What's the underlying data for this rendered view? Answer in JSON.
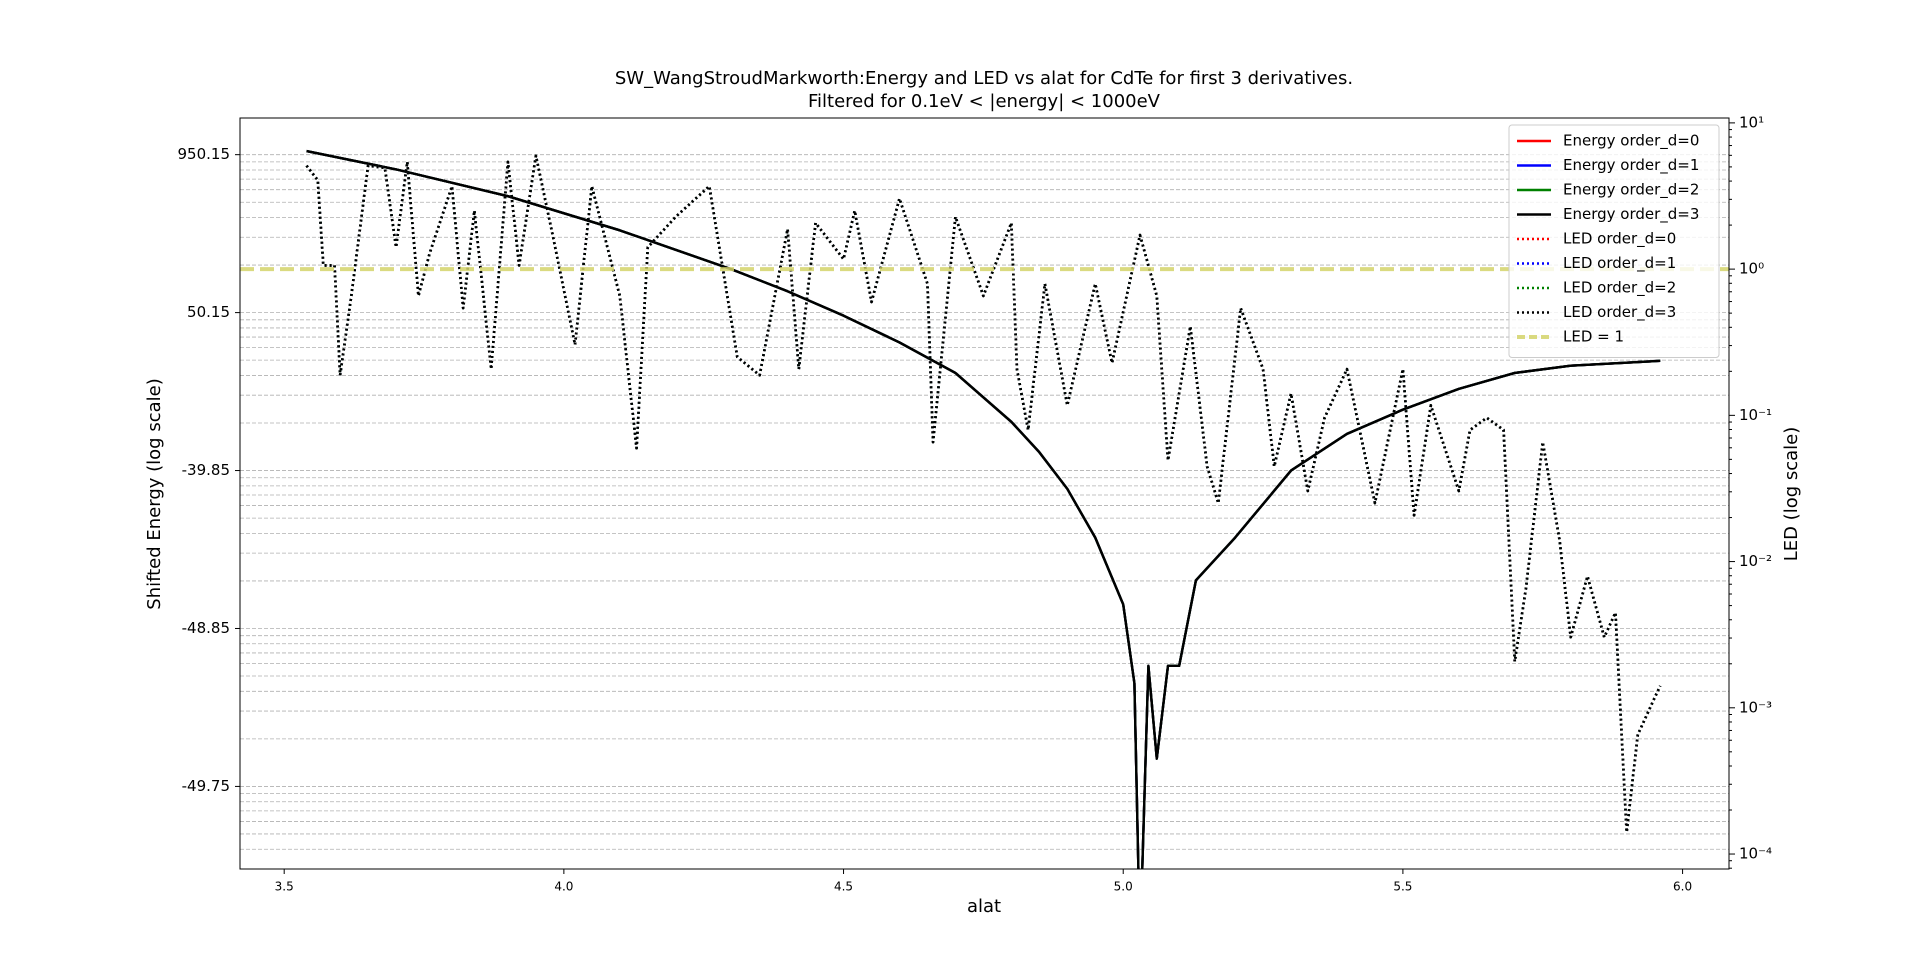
{
  "chart_data": {
    "type": "line",
    "title": "SW_WangStroudMarkworth:Energy and LED vs alat for CdTe for first 3 derivatives.",
    "subtitle": "Filtered for 0.1eV < |energy| < 1000eV",
    "x_label": "alat",
    "y_label": "Shifted Energy (log scale)",
    "y2_label": "LED (log scale)",
    "xlim": [
      3.421,
      6.083
    ],
    "xticks": [
      {
        "value": 3.5,
        "label": "3.5"
      },
      {
        "value": 4,
        "label": "4.0"
      },
      {
        "value": 4.5,
        "label": "4.5"
      },
      {
        "value": 5,
        "label": "5.0"
      },
      {
        "value": 5.5,
        "label": "5.5"
      },
      {
        "value": 6,
        "label": "6.0"
      }
    ],
    "yscale": "log",
    "ylim": [
      -49.82,
      1657
    ],
    "yticks": [
      950.15,
      50.15,
      -39.85,
      -48.85,
      -49.75
    ],
    "y2scale": "log",
    "y2lim": [
      7.9e-05,
      10.8
    ],
    "y2ticks": [
      {
        "value": 10,
        "label": "10¹"
      },
      {
        "value": 1,
        "label": "10⁰"
      },
      {
        "value": 0.1,
        "label": "10⁻¹"
      },
      {
        "value": 0.01,
        "label": "10⁻²"
      },
      {
        "value": 0.001,
        "label": "10⁻³"
      },
      {
        "value": 0.0001,
        "label": "10⁻⁴"
      }
    ],
    "grid": true,
    "legend": "upper right",
    "series": [
      {
        "name": "Energy order_d=0",
        "color": "#ff0000",
        "style": "solid",
        "axis": "y",
        "x": [
          3.54,
          3.7,
          3.9,
          4.1,
          4.3,
          4.4,
          4.5,
          4.6,
          4.7,
          4.8,
          4.85,
          4.9,
          4.95,
          5.0,
          5.02,
          5.03,
          5.045,
          5.06,
          5.08,
          5.1,
          5.13,
          5.2,
          5.3,
          5.4,
          5.5,
          5.6,
          5.7,
          5.8,
          5.96
        ],
        "values": [
          1004.7,
          757,
          496,
          282,
          138,
          86.6,
          45.8,
          14.9,
          -8.35,
          -29.5,
          -36.79,
          -42.19,
          -46.09,
          -48.43,
          -49.4,
          -49.84,
          -49.27,
          -49.7,
          -49.27,
          -49.27,
          -47.83,
          -46.09,
          -39.85,
          -32.79,
          -25.55,
          -16.95,
          -8.35,
          -3.75,
          -0.35
        ]
      },
      {
        "name": "Energy order_d=1",
        "color": "#0000ff",
        "style": "solid",
        "axis": "y",
        "x": [
          3.54,
          3.7,
          3.9,
          4.1,
          4.3,
          4.4,
          4.5,
          4.6,
          4.7,
          4.8,
          4.85,
          4.9,
          4.95,
          5.0,
          5.02,
          5.03,
          5.045,
          5.06,
          5.08,
          5.1,
          5.13,
          5.2,
          5.3,
          5.4,
          5.5,
          5.6,
          5.7,
          5.8,
          5.96
        ],
        "values": [
          1004.7,
          757,
          496,
          282,
          138,
          86.6,
          45.8,
          14.9,
          -8.35,
          -29.5,
          -36.79,
          -42.19,
          -46.09,
          -48.43,
          -49.4,
          -49.84,
          -49.27,
          -49.7,
          -49.27,
          -49.27,
          -47.83,
          -46.09,
          -39.85,
          -32.79,
          -25.55,
          -16.95,
          -8.35,
          -3.75,
          -0.35
        ]
      },
      {
        "name": "Energy order_d=2",
        "color": "#008000",
        "style": "solid",
        "axis": "y",
        "x": [
          3.54,
          3.7,
          3.9,
          4.1,
          4.3,
          4.4,
          4.5,
          4.6,
          4.7,
          4.8,
          4.85,
          4.9,
          4.95,
          5.0,
          5.02,
          5.03,
          5.045,
          5.06,
          5.08,
          5.1,
          5.13,
          5.2,
          5.3,
          5.4,
          5.5,
          5.6,
          5.7,
          5.8,
          5.96
        ],
        "values": [
          1004.7,
          757,
          496,
          282,
          138,
          86.6,
          45.8,
          14.9,
          -8.35,
          -29.5,
          -36.79,
          -42.19,
          -46.09,
          -48.43,
          -49.4,
          -49.84,
          -49.27,
          -49.7,
          -49.27,
          -49.27,
          -47.83,
          -46.09,
          -39.85,
          -32.79,
          -25.55,
          -16.95,
          -8.35,
          -3.75,
          -0.35
        ]
      },
      {
        "name": "Energy order_d=3",
        "color": "#000000",
        "style": "solid",
        "axis": "y",
        "x": [
          3.54,
          3.7,
          3.9,
          4.1,
          4.3,
          4.4,
          4.5,
          4.6,
          4.7,
          4.8,
          4.85,
          4.9,
          4.95,
          5.0,
          5.02,
          5.03,
          5.045,
          5.06,
          5.08,
          5.1,
          5.13,
          5.2,
          5.3,
          5.4,
          5.5,
          5.6,
          5.7,
          5.8,
          5.96
        ],
        "values": [
          1004.7,
          757,
          496,
          282,
          138,
          86.6,
          45.8,
          14.9,
          -8.35,
          -29.5,
          -36.79,
          -42.19,
          -46.09,
          -48.43,
          -49.4,
          -49.84,
          -49.27,
          -49.7,
          -49.27,
          -49.27,
          -47.83,
          -46.09,
          -39.85,
          -32.79,
          -25.55,
          -16.95,
          -8.35,
          -3.75,
          -0.35
        ]
      },
      {
        "name": "LED order_d=0",
        "color": "#ff0000",
        "style": "dotted",
        "axis": "y2",
        "x": [
          3.54,
          3.56,
          3.57,
          3.59,
          3.6,
          3.62,
          3.65,
          3.68,
          3.7,
          3.72,
          3.74,
          3.76,
          3.8,
          3.82,
          3.84,
          3.87,
          3.9,
          3.92,
          3.95,
          3.98,
          4.02,
          4.05,
          4.1,
          4.13,
          4.15,
          4.2,
          4.26,
          4.31,
          4.35,
          4.4,
          4.42,
          4.45,
          4.5,
          4.52,
          4.55,
          4.6,
          4.65,
          4.66,
          4.7,
          4.75,
          4.8,
          4.81,
          4.83,
          4.86,
          4.9,
          4.95,
          4.98,
          5.03,
          5.06,
          5.08,
          5.12,
          5.15,
          5.17,
          5.21,
          5.25,
          5.27,
          5.3,
          5.33,
          5.36,
          5.4,
          5.45,
          5.5,
          5.52,
          5.55,
          5.6,
          5.62,
          5.65,
          5.68,
          5.7,
          5.72,
          5.75,
          5.78,
          5.8,
          5.83,
          5.86,
          5.88,
          5.9,
          5.92,
          5.95,
          5.96
        ],
        "values": [
          5.1,
          4.06,
          1.06,
          1.06,
          0.188,
          0.656,
          5.1,
          4.92,
          1.41,
          5.41,
          0.656,
          1.28,
          3.69,
          0.541,
          2.51,
          0.207,
          5.41,
          1.06,
          5.96,
          1.71,
          0.304,
          3.69,
          0.656,
          0.0596,
          1.41,
          2.28,
          3.69,
          0.251,
          0.188,
          1.88,
          0.207,
          2.07,
          1.17,
          2.51,
          0.596,
          3.04,
          0.794,
          0.0656,
          2.28,
          0.656,
          2.07,
          0.207,
          0.0794,
          0.794,
          0.117,
          0.794,
          0.228,
          1.71,
          0.656,
          0.0492,
          0.406,
          0.0447,
          0.0251,
          0.541,
          0.207,
          0.0447,
          0.141,
          0.0304,
          0.0962,
          0.207,
          0.0251,
          0.207,
          0.0207,
          0.117,
          0.0304,
          0.0794,
          0.0962,
          0.0794,
          0.00207,
          0.00656,
          0.0656,
          0.0141,
          0.00304,
          0.00794,
          0.00304,
          0.00447,
          0.000141,
          0.000656,
          0.00117,
          0.00141
        ]
      },
      {
        "name": "LED order_d=1",
        "color": "#0000ff",
        "style": "dotted",
        "axis": "y2",
        "x": [
          3.54,
          3.56,
          3.57,
          3.59,
          3.6,
          3.62,
          3.65,
          3.68,
          3.7,
          3.72,
          3.74,
          3.76,
          3.8,
          3.82,
          3.84,
          3.87,
          3.9,
          3.92,
          3.95,
          3.98,
          4.02,
          4.05,
          4.1,
          4.13,
          4.15,
          4.2,
          4.26,
          4.31,
          4.35,
          4.4,
          4.42,
          4.45,
          4.5,
          4.52,
          4.55,
          4.6,
          4.65,
          4.66,
          4.7,
          4.75,
          4.8,
          4.81,
          4.83,
          4.86,
          4.9,
          4.95,
          4.98,
          5.03,
          5.06,
          5.08,
          5.12,
          5.15,
          5.17,
          5.21,
          5.25,
          5.27,
          5.3,
          5.33,
          5.36,
          5.4,
          5.45,
          5.5,
          5.52,
          5.55,
          5.6,
          5.62,
          5.65,
          5.68,
          5.7,
          5.72,
          5.75,
          5.78,
          5.8,
          5.83,
          5.86,
          5.88,
          5.9,
          5.92,
          5.95,
          5.96
        ],
        "values": [
          5.1,
          4.06,
          1.06,
          1.06,
          0.188,
          0.656,
          5.1,
          4.92,
          1.41,
          5.41,
          0.656,
          1.28,
          3.69,
          0.541,
          2.51,
          0.207,
          5.41,
          1.06,
          5.96,
          1.71,
          0.304,
          3.69,
          0.656,
          0.0596,
          1.41,
          2.28,
          3.69,
          0.251,
          0.188,
          1.88,
          0.207,
          2.07,
          1.17,
          2.51,
          0.596,
          3.04,
          0.794,
          0.0656,
          2.28,
          0.656,
          2.07,
          0.207,
          0.0794,
          0.794,
          0.117,
          0.794,
          0.228,
          1.71,
          0.656,
          0.0492,
          0.406,
          0.0447,
          0.0251,
          0.541,
          0.207,
          0.0447,
          0.141,
          0.0304,
          0.0962,
          0.207,
          0.0251,
          0.207,
          0.0207,
          0.117,
          0.0304,
          0.0794,
          0.0962,
          0.0794,
          0.00207,
          0.00656,
          0.0656,
          0.0141,
          0.00304,
          0.00794,
          0.00304,
          0.00447,
          0.000141,
          0.000656,
          0.00117,
          0.00141
        ]
      },
      {
        "name": "LED order_d=2",
        "color": "#008000",
        "style": "dotted",
        "axis": "y2",
        "x": [
          3.54,
          3.56,
          3.57,
          3.59,
          3.6,
          3.62,
          3.65,
          3.68,
          3.7,
          3.72,
          3.74,
          3.76,
          3.8,
          3.82,
          3.84,
          3.87,
          3.9,
          3.92,
          3.95,
          3.98,
          4.02,
          4.05,
          4.1,
          4.13,
          4.15,
          4.2,
          4.26,
          4.31,
          4.35,
          4.4,
          4.42,
          4.45,
          4.5,
          4.52,
          4.55,
          4.6,
          4.65,
          4.66,
          4.7,
          4.75,
          4.8,
          4.81,
          4.83,
          4.86,
          4.9,
          4.95,
          4.98,
          5.03,
          5.06,
          5.08,
          5.12,
          5.15,
          5.17,
          5.21,
          5.25,
          5.27,
          5.3,
          5.33,
          5.36,
          5.4,
          5.45,
          5.5,
          5.52,
          5.55,
          5.6,
          5.62,
          5.65,
          5.68,
          5.7,
          5.72,
          5.75,
          5.78,
          5.8,
          5.83,
          5.86,
          5.88,
          5.9,
          5.92,
          5.95,
          5.96
        ],
        "values": [
          5.1,
          4.06,
          1.06,
          1.06,
          0.188,
          0.656,
          5.1,
          4.92,
          1.41,
          5.41,
          0.656,
          1.28,
          3.69,
          0.541,
          2.51,
          0.207,
          5.41,
          1.06,
          5.96,
          1.71,
          0.304,
          3.69,
          0.656,
          0.0596,
          1.41,
          2.28,
          3.69,
          0.251,
          0.188,
          1.88,
          0.207,
          2.07,
          1.17,
          2.51,
          0.596,
          3.04,
          0.794,
          0.0656,
          2.28,
          0.656,
          2.07,
          0.207,
          0.0794,
          0.794,
          0.117,
          0.794,
          0.228,
          1.71,
          0.656,
          0.0492,
          0.406,
          0.0447,
          0.0251,
          0.541,
          0.207,
          0.0447,
          0.141,
          0.0304,
          0.0962,
          0.207,
          0.0251,
          0.207,
          0.0207,
          0.117,
          0.0304,
          0.0794,
          0.0962,
          0.0794,
          0.00207,
          0.00656,
          0.0656,
          0.0141,
          0.00304,
          0.00794,
          0.00304,
          0.00447,
          0.000141,
          0.000656,
          0.00117,
          0.00141
        ]
      },
      {
        "name": "LED order_d=3",
        "color": "#000000",
        "style": "dotted",
        "axis": "y2",
        "x": [
          3.54,
          3.56,
          3.57,
          3.59,
          3.6,
          3.62,
          3.65,
          3.68,
          3.7,
          3.72,
          3.74,
          3.76,
          3.8,
          3.82,
          3.84,
          3.87,
          3.9,
          3.92,
          3.95,
          3.98,
          4.02,
          4.05,
          4.1,
          4.13,
          4.15,
          4.2,
          4.26,
          4.31,
          4.35,
          4.4,
          4.42,
          4.45,
          4.5,
          4.52,
          4.55,
          4.6,
          4.65,
          4.66,
          4.7,
          4.75,
          4.8,
          4.81,
          4.83,
          4.86,
          4.9,
          4.95,
          4.98,
          5.03,
          5.06,
          5.08,
          5.12,
          5.15,
          5.17,
          5.21,
          5.25,
          5.27,
          5.3,
          5.33,
          5.36,
          5.4,
          5.45,
          5.5,
          5.52,
          5.55,
          5.6,
          5.62,
          5.65,
          5.68,
          5.7,
          5.72,
          5.75,
          5.78,
          5.8,
          5.83,
          5.86,
          5.88,
          5.9,
          5.92,
          5.95,
          5.96
        ],
        "values": [
          5.1,
          4.06,
          1.06,
          1.06,
          0.188,
          0.656,
          5.1,
          4.92,
          1.41,
          5.41,
          0.656,
          1.28,
          3.69,
          0.541,
          2.51,
          0.207,
          5.41,
          1.06,
          5.96,
          1.71,
          0.304,
          3.69,
          0.656,
          0.0596,
          1.41,
          2.28,
          3.69,
          0.251,
          0.188,
          1.88,
          0.207,
          2.07,
          1.17,
          2.51,
          0.596,
          3.04,
          0.794,
          0.0656,
          2.28,
          0.656,
          2.07,
          0.207,
          0.0794,
          0.794,
          0.117,
          0.794,
          0.228,
          1.71,
          0.656,
          0.0492,
          0.406,
          0.0447,
          0.0251,
          0.541,
          0.207,
          0.0447,
          0.141,
          0.0304,
          0.0962,
          0.207,
          0.0251,
          0.207,
          0.0207,
          0.117,
          0.0304,
          0.0794,
          0.0962,
          0.0794,
          0.00207,
          0.00656,
          0.0656,
          0.0141,
          0.00304,
          0.00794,
          0.00304,
          0.00447,
          0.000141,
          0.000656,
          0.00117,
          0.00141
        ]
      }
    ],
    "reference_line": {
      "name": "LED = 1",
      "value": 1,
      "axis": "y2",
      "color": "#d4d46a",
      "style": "dashed"
    }
  }
}
